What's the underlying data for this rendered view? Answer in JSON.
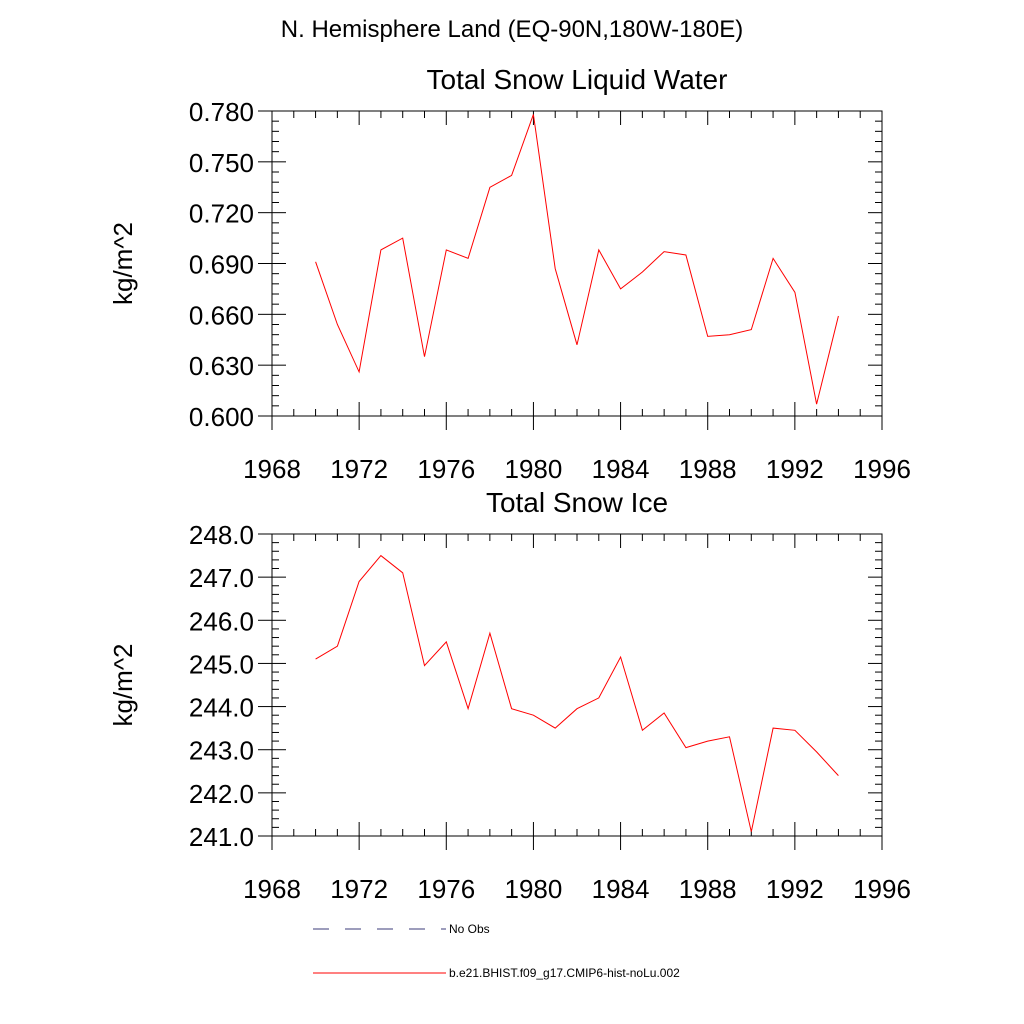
{
  "suptitle": "N. Hemisphere Land (EQ-90N,180W-180E)",
  "chart_data": [
    {
      "type": "line",
      "title": "Total Snow Liquid Water",
      "xlabel": "",
      "ylabel": "kg/m^2",
      "xlim": [
        1968,
        1996
      ],
      "ylim": [
        0.6,
        0.78
      ],
      "xticks": [
        1968,
        1972,
        1976,
        1980,
        1984,
        1988,
        1992,
        1996
      ],
      "xtick_labels": [
        "1968",
        "1972",
        "1976",
        "1980",
        "1984",
        "1988",
        "1992",
        "1996"
      ],
      "yticks": [
        0.6,
        0.63,
        0.66,
        0.69,
        0.72,
        0.75,
        0.78
      ],
      "ytick_labels": [
        "0.600",
        "0.630",
        "0.660",
        "0.690",
        "0.720",
        "0.750",
        "0.780"
      ],
      "grid": false,
      "x": [
        1970,
        1971,
        1972,
        1973,
        1974,
        1975,
        1976,
        1977,
        1978,
        1979,
        1980,
        1981,
        1982,
        1983,
        1984,
        1985,
        1986,
        1987,
        1988,
        1989,
        1990,
        1991,
        1992,
        1993,
        1994
      ],
      "series": [
        {
          "name": "b.e21.BHIST.f09_g17.CMIP6-hist-noLu.002",
          "color": "#ff0000",
          "values": [
            0.691,
            0.654,
            0.626,
            0.698,
            0.705,
            0.635,
            0.698,
            0.693,
            0.735,
            0.742,
            0.778,
            0.687,
            0.642,
            0.698,
            0.675,
            0.685,
            0.697,
            0.695,
            0.647,
            0.648,
            0.651,
            0.693,
            0.673,
            0.607,
            0.659
          ]
        }
      ]
    },
    {
      "type": "line",
      "title": "Total Snow Ice",
      "xlabel": "",
      "ylabel": "kg/m^2",
      "xlim": [
        1968,
        1996
      ],
      "ylim": [
        241.0,
        248.0
      ],
      "xticks": [
        1968,
        1972,
        1976,
        1980,
        1984,
        1988,
        1992,
        1996
      ],
      "xtick_labels": [
        "1968",
        "1972",
        "1976",
        "1980",
        "1984",
        "1988",
        "1992",
        "1996"
      ],
      "yticks": [
        241.0,
        242.0,
        243.0,
        244.0,
        245.0,
        246.0,
        247.0,
        248.0
      ],
      "ytick_labels": [
        "241.0",
        "242.0",
        "243.0",
        "244.0",
        "245.0",
        "246.0",
        "247.0",
        "248.0"
      ],
      "grid": false,
      "x": [
        1970,
        1971,
        1972,
        1973,
        1974,
        1975,
        1976,
        1977,
        1978,
        1979,
        1980,
        1981,
        1982,
        1983,
        1984,
        1985,
        1986,
        1987,
        1988,
        1989,
        1990,
        1991,
        1992,
        1993,
        1994
      ],
      "series": [
        {
          "name": "b.e21.BHIST.f09_g17.CMIP6-hist-noLu.002",
          "color": "#ff0000",
          "values": [
            245.1,
            245.4,
            246.9,
            247.5,
            247.1,
            244.95,
            245.5,
            243.95,
            245.7,
            243.95,
            243.8,
            243.5,
            243.95,
            244.2,
            245.15,
            243.45,
            243.85,
            243.05,
            243.2,
            243.3,
            241.1,
            243.5,
            243.45,
            242.95,
            242.4
          ]
        }
      ]
    }
  ],
  "legend": {
    "placement": "bottom",
    "items": [
      {
        "label": "No Obs",
        "color": "#3b3b7a",
        "style": "dashed"
      },
      {
        "label": "b.e21.BHIST.f09_g17.CMIP6-hist-noLu.002",
        "color": "#ff0000",
        "style": "solid"
      }
    ]
  }
}
